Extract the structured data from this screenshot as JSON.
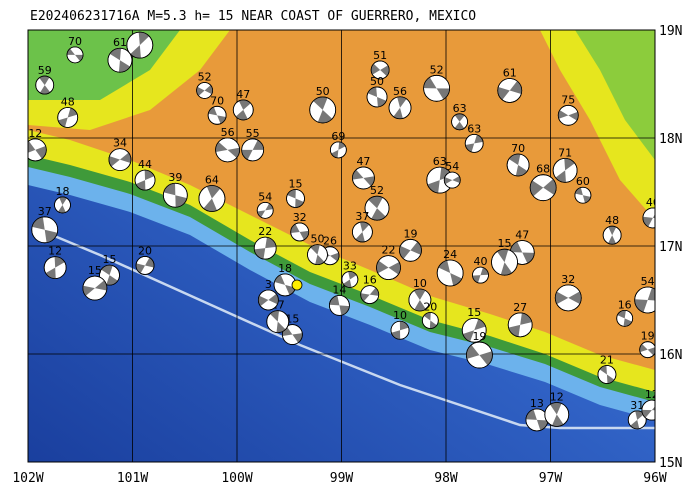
{
  "map": {
    "title": "E202406231716A  M=5.3 h= 15 NEAR COAST OF GUERRERO, MEXICO",
    "xlim": [
      -102,
      -96
    ],
    "ylim": [
      15,
      19
    ],
    "xticks": [
      {
        "value": -102,
        "label": "102W"
      },
      {
        "value": -101,
        "label": "101W"
      },
      {
        "value": -100,
        "label": "100W"
      },
      {
        "value": -99,
        "label": "99W"
      },
      {
        "value": -98,
        "label": "98W"
      },
      {
        "value": -97,
        "label": "97W"
      },
      {
        "value": -96,
        "label": "96W"
      }
    ],
    "yticks": [
      {
        "value": 19,
        "label": "19N"
      },
      {
        "value": 18,
        "label": "18N"
      },
      {
        "value": 17,
        "label": "17N"
      },
      {
        "value": 16,
        "label": "16N"
      },
      {
        "value": 15,
        "label": "15N"
      }
    ],
    "quakes": [
      {
        "lon": -101.55,
        "lat": 18.77,
        "depth": 70
      },
      {
        "lon": -101.84,
        "lat": 18.49,
        "depth": 59
      },
      {
        "lon": -101.62,
        "lat": 18.19,
        "depth": 48
      },
      {
        "lon": -101.93,
        "lat": 17.89,
        "depth": 12
      },
      {
        "lon": -101.12,
        "lat": 18.72,
        "depth": 61
      },
      {
        "lon": -100.93,
        "lat": 18.86,
        "depth": 60
      },
      {
        "lon": -100.31,
        "lat": 18.44,
        "depth": 52
      },
      {
        "lon": -100.19,
        "lat": 18.21,
        "depth": 70
      },
      {
        "lon": -99.94,
        "lat": 18.26,
        "depth": 47
      },
      {
        "lon": -99.85,
        "lat": 17.89,
        "depth": 55
      },
      {
        "lon": -100.09,
        "lat": 17.89,
        "depth": 56
      },
      {
        "lon": -99.18,
        "lat": 18.26,
        "depth": 50
      },
      {
        "lon": -99.03,
        "lat": 17.89,
        "depth": 69
      },
      {
        "lon": -98.63,
        "lat": 18.63,
        "depth": 51
      },
      {
        "lon": -98.66,
        "lat": 18.38,
        "depth": 50
      },
      {
        "lon": -98.44,
        "lat": 18.28,
        "depth": 56
      },
      {
        "lon": -97.39,
        "lat": 18.44,
        "depth": 61
      },
      {
        "lon": -98.09,
        "lat": 18.46,
        "depth": 52
      },
      {
        "lon": -97.87,
        "lat": 18.15,
        "depth": 63
      },
      {
        "lon": -97.73,
        "lat": 17.95,
        "depth": 63
      },
      {
        "lon": -96.83,
        "lat": 18.21,
        "depth": 75
      },
      {
        "lon": -97.31,
        "lat": 17.75,
        "depth": 70
      },
      {
        "lon": -96.86,
        "lat": 17.7,
        "depth": 71
      },
      {
        "lon": -97.07,
        "lat": 17.54,
        "depth": 68
      },
      {
        "lon": -96.69,
        "lat": 17.47,
        "depth": 60
      },
      {
        "lon": -96.41,
        "lat": 17.1,
        "depth": 48
      },
      {
        "lon": -96.02,
        "lat": 17.26,
        "depth": 40
      },
      {
        "lon": -98.79,
        "lat": 17.63,
        "depth": 47
      },
      {
        "lon": -98.66,
        "lat": 17.35,
        "depth": 52
      },
      {
        "lon": -98.06,
        "lat": 17.61,
        "depth": 63
      },
      {
        "lon": -97.94,
        "lat": 17.61,
        "depth": 54
      },
      {
        "lon": -99.44,
        "lat": 17.44,
        "depth": 15
      },
      {
        "lon": -98.8,
        "lat": 17.13,
        "depth": 37
      },
      {
        "lon": -98.34,
        "lat": 16.96,
        "depth": 19
      },
      {
        "lon": -97.27,
        "lat": 16.94,
        "depth": 47
      },
      {
        "lon": -97.44,
        "lat": 16.85,
        "depth": 15
      },
      {
        "lon": -97.67,
        "lat": 16.73,
        "depth": 40
      },
      {
        "lon": -99.11,
        "lat": 16.91,
        "depth": 26
      },
      {
        "lon": -101.22,
        "lat": 16.73,
        "depth": 15
      },
      {
        "lon": -101.74,
        "lat": 16.8,
        "depth": 12
      },
      {
        "lon": -101.36,
        "lat": 16.61,
        "depth": 15
      },
      {
        "lon": -101.84,
        "lat": 17.15,
        "depth": 37
      },
      {
        "lon": -101.67,
        "lat": 17.38,
        "depth": 18
      },
      {
        "lon": -100.88,
        "lat": 16.82,
        "depth": 20
      },
      {
        "lon": -99.47,
        "lat": 16.18,
        "depth": 15
      },
      {
        "lon": -99.61,
        "lat": 16.3,
        "depth": 17
      },
      {
        "lon": -97.29,
        "lat": 16.27,
        "depth": 27
      },
      {
        "lon": -96.83,
        "lat": 16.52,
        "depth": 32
      },
      {
        "lon": -96.29,
        "lat": 16.33,
        "depth": 16
      },
      {
        "lon": -96.17,
        "lat": 15.39,
        "depth": 31
      },
      {
        "lon": -96.03,
        "lat": 15.48,
        "depth": 12
      },
      {
        "lon": -97.13,
        "lat": 15.39,
        "depth": 13
      },
      {
        "lon": -96.94,
        "lat": 15.44,
        "depth": 12
      },
      {
        "lon": -96.07,
        "lat": 16.5,
        "depth": 54
      },
      {
        "lon": -96.07,
        "lat": 16.04,
        "depth": 19
      },
      {
        "lon": -96.46,
        "lat": 15.81,
        "depth": 21
      },
      {
        "lon": -100.88,
        "lat": 17.61,
        "depth": 44
      },
      {
        "lon": -101.12,
        "lat": 17.8,
        "depth": 34
      },
      {
        "lon": -100.59,
        "lat": 17.47,
        "depth": 39
      },
      {
        "lon": -100.24,
        "lat": 17.44,
        "depth": 64
      },
      {
        "lon": -99.73,
        "lat": 17.33,
        "depth": 54
      },
      {
        "lon": -99.4,
        "lat": 17.13,
        "depth": 32
      },
      {
        "lon": -99.23,
        "lat": 16.92,
        "depth": 50
      },
      {
        "lon": -99.73,
        "lat": 16.98,
        "depth": 22
      },
      {
        "lon": -98.55,
        "lat": 16.8,
        "depth": 22
      },
      {
        "lon": -97.96,
        "lat": 16.75,
        "depth": 24
      },
      {
        "lon": -98.92,
        "lat": 16.69,
        "depth": 33
      },
      {
        "lon": -98.73,
        "lat": 16.55,
        "depth": 16
      },
      {
        "lon": -99.02,
        "lat": 16.45,
        "depth": 14
      },
      {
        "lon": -98.25,
        "lat": 16.5,
        "depth": 10
      },
      {
        "lon": -97.73,
        "lat": 16.22,
        "depth": 15
      },
      {
        "lon": -97.68,
        "lat": 15.99,
        "depth": 19
      },
      {
        "lon": -98.15,
        "lat": 16.31,
        "depth": 20
      },
      {
        "lon": -98.44,
        "lat": 16.22,
        "depth": 10
      },
      {
        "lon": -99.7,
        "lat": 16.5,
        "depth": 3
      },
      {
        "lon": -99.54,
        "lat": 16.64,
        "depth": 18
      }
    ]
  }
}
